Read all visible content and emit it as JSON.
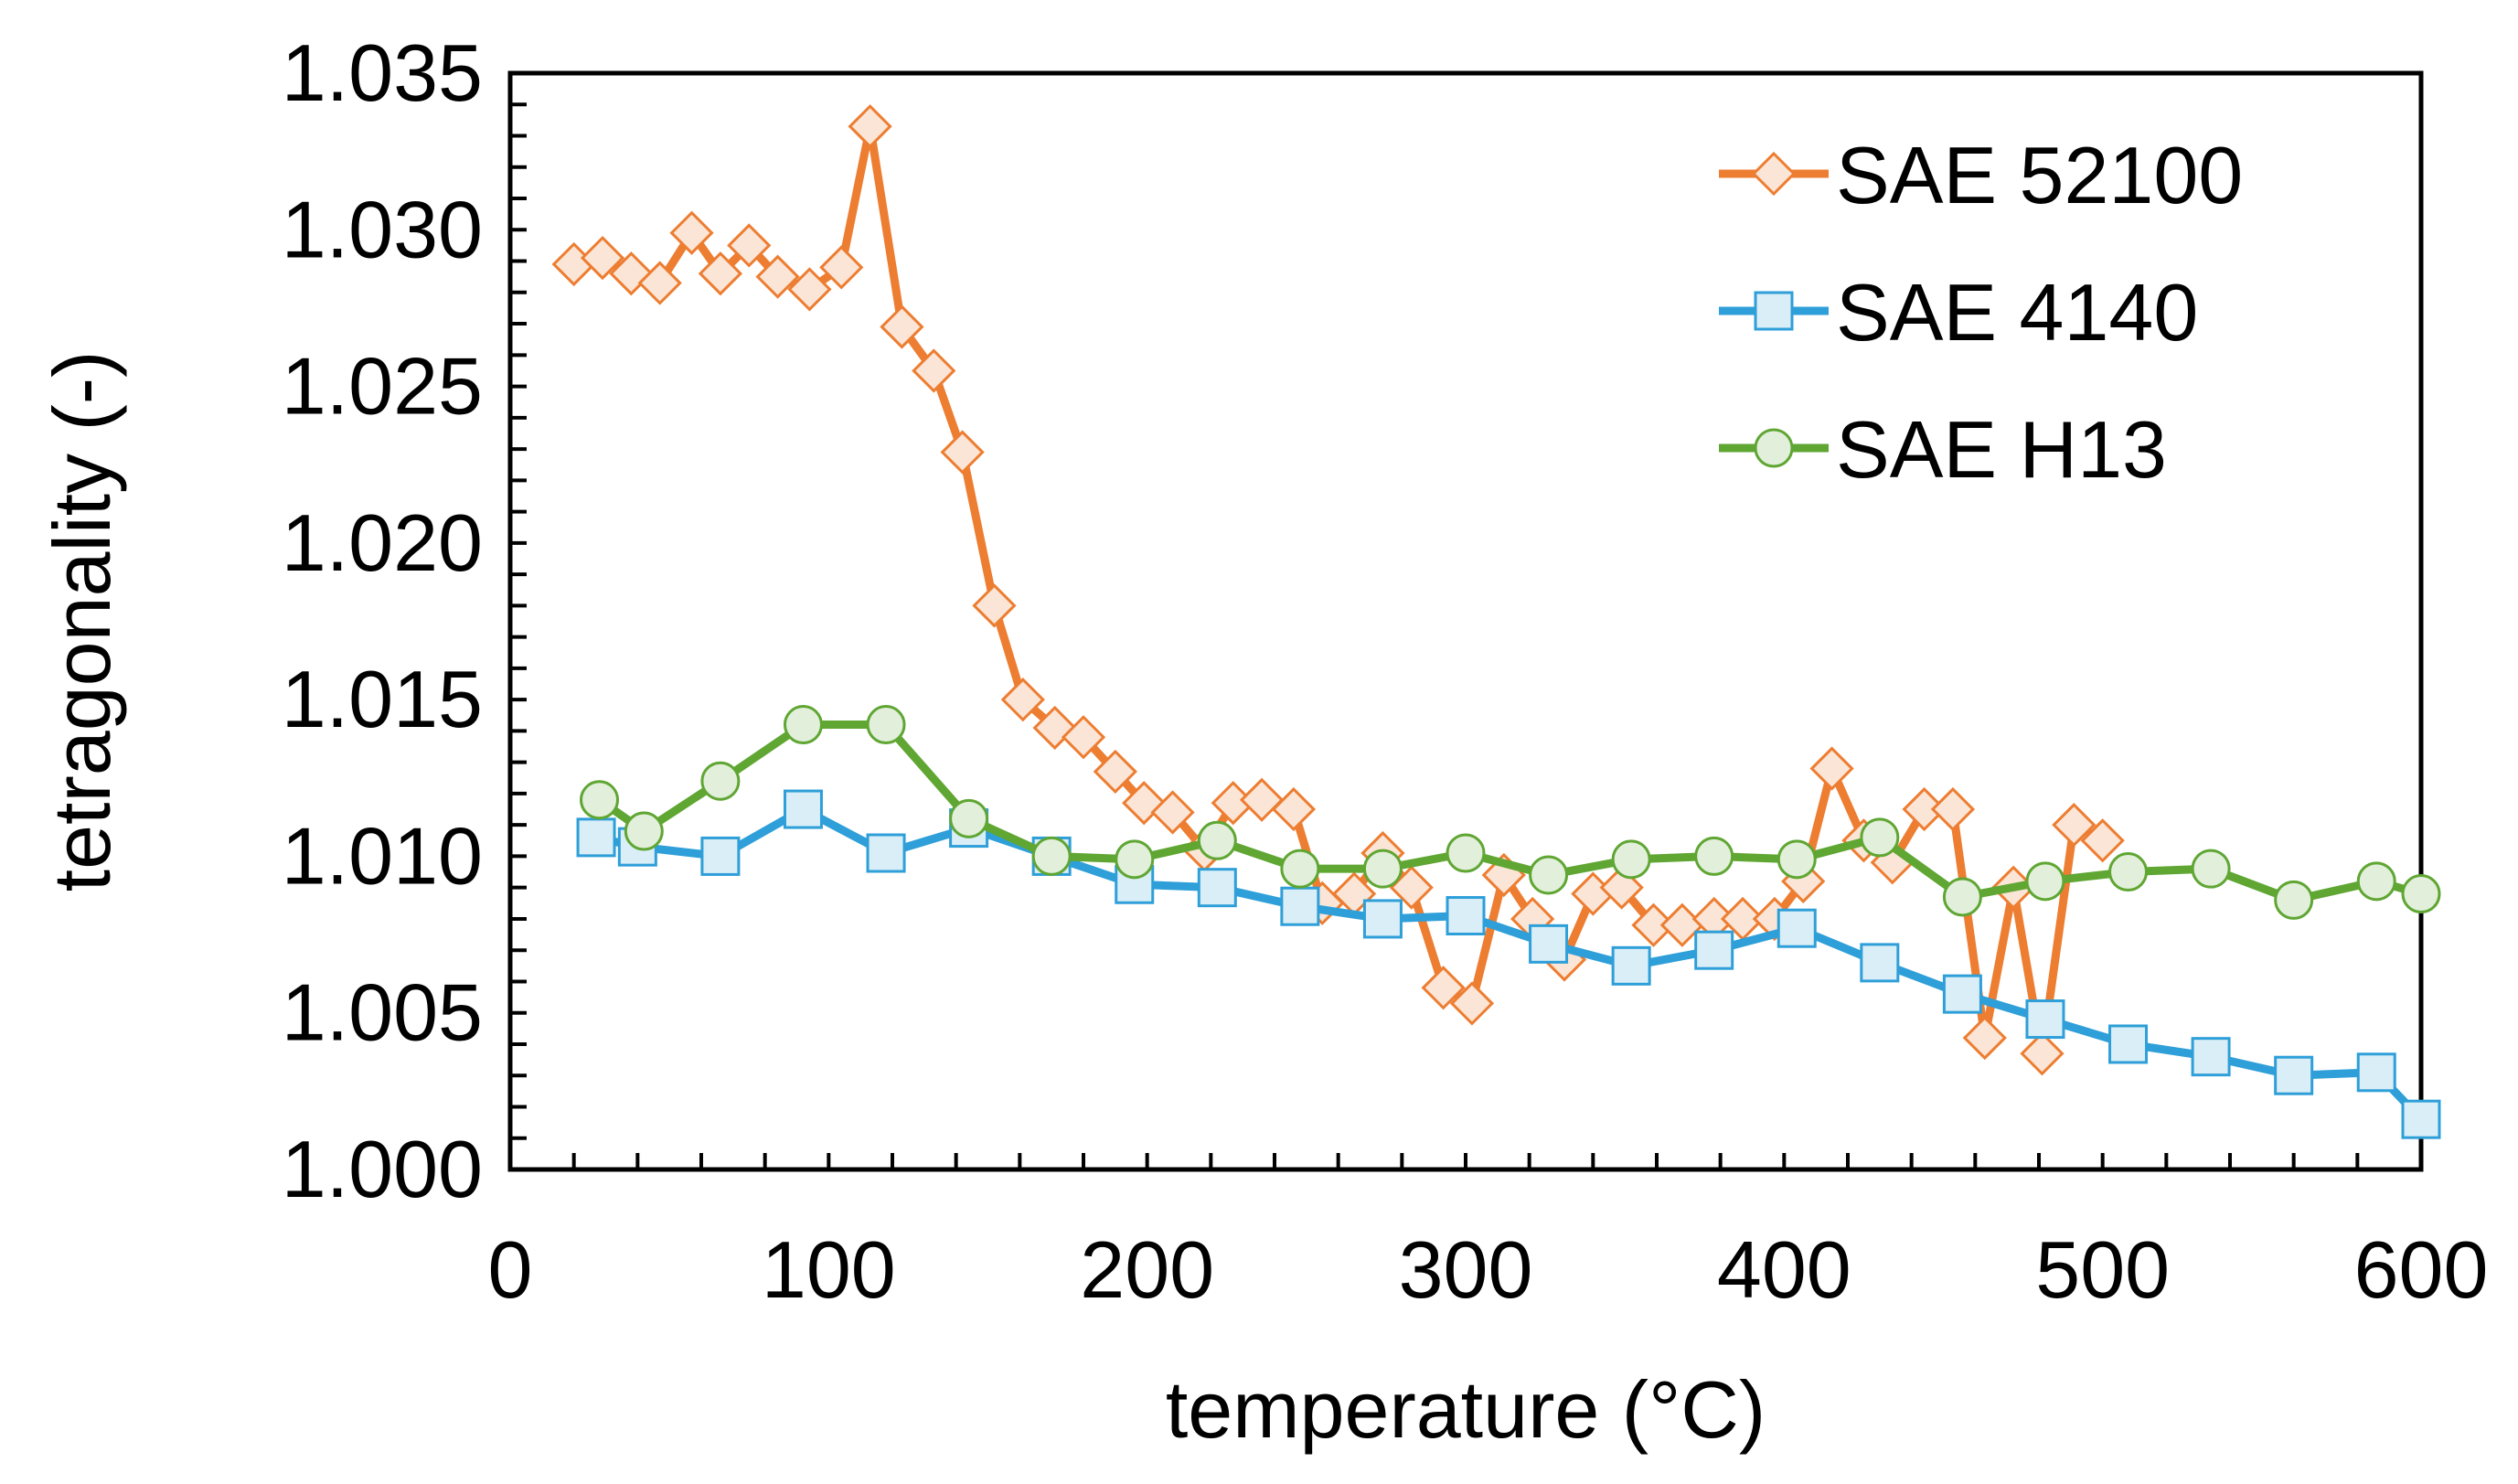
{
  "chart_data": {
    "type": "line",
    "title": "",
    "xlabel": "temperature (°C)",
    "ylabel": "tetragonality (-)",
    "xlim": [
      0,
      600
    ],
    "ylim": [
      1.0,
      1.035
    ],
    "xticks": [
      0,
      100,
      200,
      300,
      400,
      500,
      600
    ],
    "yticks": [
      1.0,
      1.005,
      1.01,
      1.015,
      1.02,
      1.025,
      1.03,
      1.035
    ],
    "xtick_labels": [
      "0",
      "100",
      "200",
      "300",
      "400",
      "500",
      "600"
    ],
    "ytick_labels": [
      "1.000",
      "1.005",
      "1.010",
      "1.015",
      "1.020",
      "1.025",
      "1.030",
      "1.035"
    ],
    "grid": false,
    "legend_position": "top-right",
    "series": [
      {
        "name": "SAE 52100",
        "color": "#ED7D31",
        "fill": "#FBE5D6",
        "marker": "diamond",
        "x": [
          20,
          29,
          38,
          47,
          57,
          66,
          75,
          84,
          94,
          104,
          113,
          123,
          133,
          142,
          152,
          161,
          171,
          180,
          190,
          199,
          208,
          218,
          227,
          236,
          246,
          255,
          265,
          274,
          283,
          293,
          302,
          312,
          321,
          331,
          340,
          349,
          359,
          368,
          378,
          387,
          397,
          406,
          415,
          425,
          434,
          444,
          453,
          463,
          472,
          481,
          491,
          500
        ],
        "y": [
          1.0289,
          1.0291,
          1.0286,
          1.0283,
          1.0299,
          1.0286,
          1.0295,
          1.0285,
          1.0281,
          1.0288,
          1.0333,
          1.0269,
          1.0255,
          1.0229,
          1.018,
          1.015,
          1.0141,
          1.0138,
          1.0127,
          1.0117,
          1.0114,
          1.0102,
          1.0117,
          1.0118,
          1.0115,
          1.0085,
          1.0088,
          1.0101,
          1.009,
          1.0058,
          1.0053,
          1.0094,
          1.008,
          1.0067,
          1.0088,
          1.009,
          1.0078,
          1.0078,
          1.008,
          1.008,
          1.008,
          1.0092,
          1.0128,
          1.0105,
          1.0098,
          1.0115,
          1.0115,
          1.0042,
          1.009,
          1.0037,
          1.011,
          1.0105
        ]
      },
      {
        "name": "SAE 4140",
        "color": "#2E9FD8",
        "fill": "#DAEEF7",
        "marker": "square",
        "x": [
          27,
          40,
          66,
          92,
          118,
          144,
          170,
          196,
          222,
          248,
          274,
          300,
          326,
          352,
          378,
          404,
          430,
          456,
          482,
          508,
          534,
          560,
          586,
          600
        ],
        "y": [
          1.0106,
          1.0103,
          1.01,
          1.0115,
          1.0101,
          1.0109,
          1.01,
          1.0091,
          1.009,
          1.0084,
          1.008,
          1.0081,
          1.0072,
          1.0065,
          1.007,
          1.0077,
          1.0066,
          1.0056,
          1.0048,
          1.004,
          1.0036,
          1.003,
          1.0031,
          1.0016
        ]
      },
      {
        "name": "SAE H13",
        "color": "#5FA633",
        "fill": "#E2EFDA",
        "marker": "circle",
        "x": [
          28,
          42,
          66,
          92,
          118,
          144,
          170,
          196,
          222,
          248,
          274,
          300,
          326,
          352,
          378,
          404,
          430,
          456,
          482,
          508,
          534,
          560,
          586,
          600
        ],
        "y": [
          1.0118,
          1.0108,
          1.0124,
          1.0142,
          1.0142,
          1.0112,
          1.01,
          1.0099,
          1.0105,
          1.0096,
          1.0096,
          1.0101,
          1.0094,
          1.0099,
          1.01,
          1.0099,
          1.0106,
          1.0087,
          1.0092,
          1.0095,
          1.0096,
          1.0086,
          1.0092,
          1.0088
        ]
      }
    ]
  }
}
